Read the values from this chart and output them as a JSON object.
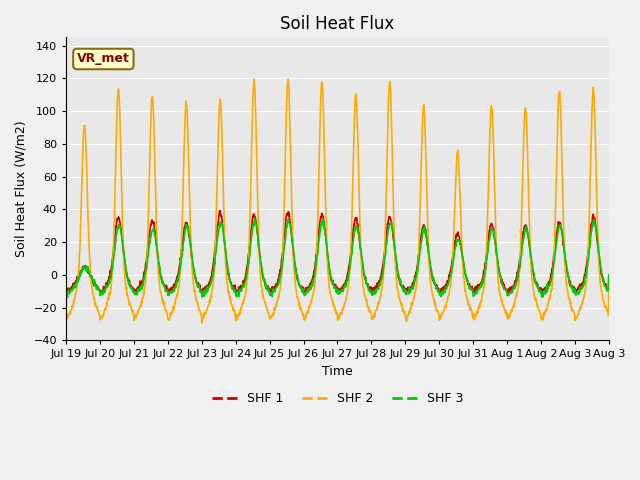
{
  "title": "Soil Heat Flux",
  "ylabel": "Soil Heat Flux (W/m2)",
  "xlabel": "Time",
  "ylim": [
    -40,
    145
  ],
  "yticks": [
    -40,
    -20,
    0,
    20,
    40,
    60,
    80,
    100,
    120,
    140
  ],
  "legend_label": "VR_met",
  "series_labels": [
    "SHF 1",
    "SHF 2",
    "SHF 3"
  ],
  "series_colors": [
    "#cc0000",
    "#ffaa00",
    "#00cc00"
  ],
  "axes_facecolor": "#e8e8e8",
  "fig_facecolor": "#f0f0f0",
  "n_days": 16,
  "tick_labels": [
    "Jul 19",
    "Jul 20",
    "Jul 21",
    "Jul 22",
    "Jul 23",
    "Jul 24",
    "Jul 25",
    "Jul 26",
    "Jul 27",
    "Jul 28",
    "Jul 29",
    "Jul 30",
    "Jul 31",
    "Aug 1",
    "Aug 2",
    "Aug 3",
    "Aug 3"
  ],
  "shf2_peaks": [
    91,
    114,
    109,
    105,
    107,
    118,
    119,
    118,
    110,
    118,
    103,
    75,
    104,
    102,
    112,
    113
  ],
  "shf1_peaks": [
    5,
    35,
    33,
    32,
    38,
    37,
    38,
    37,
    34,
    35,
    29,
    25,
    31,
    30,
    32,
    35
  ],
  "shf3_peaks": [
    5,
    30,
    28,
    30,
    32,
    33,
    33,
    33,
    30,
    32,
    28,
    22,
    28,
    28,
    30,
    33
  ]
}
